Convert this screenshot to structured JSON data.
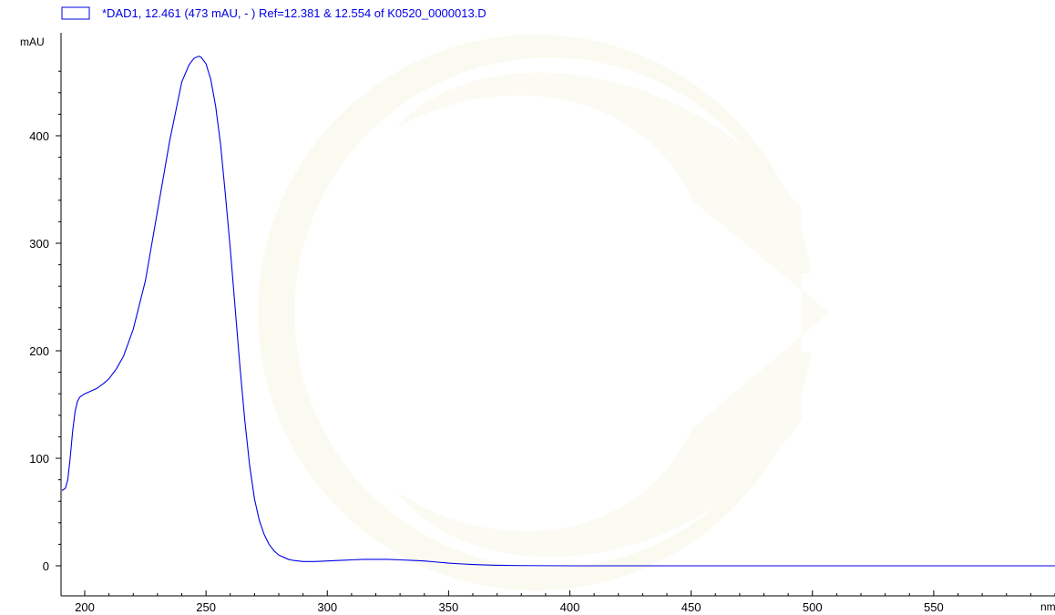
{
  "chart_data": {
    "type": "line",
    "title": "*DAD1, 12.461 (473 mAU, - ) Ref=12.381 & 12.554 of K0520_0000013.D",
    "xlabel": "nm",
    "ylabel": "mAU",
    "xlim": [
      190,
      600
    ],
    "ylim": [
      -10,
      490
    ],
    "x_ticks": [
      200,
      250,
      300,
      350,
      400,
      450,
      500,
      550
    ],
    "y_ticks": [
      0,
      100,
      200,
      300,
      400
    ],
    "x_minor_step": 10,
    "y_minor_step": 20,
    "grid": false,
    "legend_position": "top-left",
    "colors": {
      "line": "#0000e6",
      "legend_text": "#0000e6",
      "axis": "#000000",
      "watermark": "#fafaf0"
    },
    "series": [
      {
        "name": "*DAD1, 12.461 (473 mAU, - ) Ref=12.381 & 12.554 of K0520_0000013.D",
        "x": [
          190,
          192,
          193,
          194,
          195,
          196,
          197,
          198,
          200,
          202,
          205,
          208,
          210,
          213,
          216,
          220,
          225,
          230,
          235,
          240,
          243,
          245,
          247,
          248,
          250,
          252,
          254,
          256,
          258,
          260,
          262,
          264,
          266,
          268,
          270,
          272,
          274,
          276,
          278,
          280,
          282,
          284,
          286,
          288,
          290,
          292,
          295,
          300,
          305,
          310,
          315,
          320,
          325,
          330,
          335,
          340,
          345,
          350,
          355,
          360,
          365,
          370,
          380,
          400,
          450,
          500,
          550,
          600
        ],
        "y": [
          70,
          72,
          80,
          100,
          125,
          143,
          153,
          157,
          160,
          162,
          165,
          170,
          174,
          183,
          195,
          220,
          265,
          330,
          395,
          450,
          466,
          472,
          474,
          473,
          467,
          452,
          427,
          392,
          345,
          295,
          240,
          185,
          135,
          93,
          62,
          42,
          29,
          20,
          14,
          10,
          8,
          6,
          5,
          4.5,
          4,
          4,
          4,
          4.5,
          5,
          5.5,
          6,
          6,
          6,
          5.5,
          5,
          4.5,
          3.5,
          2.5,
          1.8,
          1.2,
          0.8,
          0.5,
          0.2,
          0,
          0,
          0,
          0,
          0
        ]
      }
    ]
  }
}
